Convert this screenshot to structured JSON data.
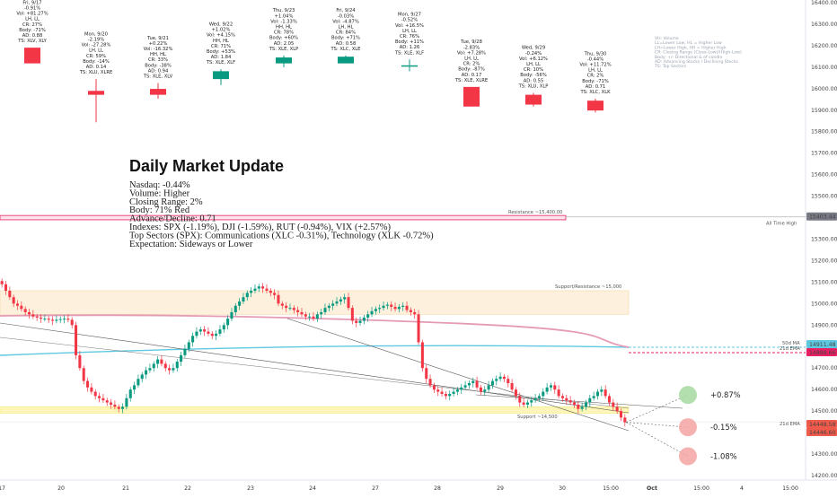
{
  "chart_data": {
    "type": "candlestick",
    "title": "Daily Market Update",
    "summary": [
      "Nasdaq: -0.44%",
      "Volume: Higher",
      "Closing Range: 2%",
      "Body: 71% Red",
      "Advance/Decline:  0.71",
      "Indexes: SPX (-1.19%), DJI (-1.59%), RUT (-0.94%), VIX (+2.57%)",
      "Top Sectors (SPX): Communications (XLC -0.31%), Technology (XLK -0.72%)",
      "Expectation: Sideways or Lower"
    ],
    "legend": [
      "VH: Volume",
      "LL=Lower Low, HL = Higher Low",
      "LH=Lower High, HH = Higher High",
      "CR: Closing Range (Close-Low)/(High-Low)",
      "Body: +/- Directional & of candle",
      "AD: Advancing Stocks / Declining Stocks",
      "TS: Top Sectors"
    ],
    "y_axis": {
      "ticks": [
        14200,
        14300,
        14400,
        14500,
        14600,
        14700,
        14800,
        14900,
        15000,
        15100,
        15200,
        15300,
        15400,
        15500,
        15600,
        15700,
        15800,
        15900,
        16000,
        16100,
        16200,
        16300,
        16400
      ],
      "badges": [
        {
          "text": "15403.44",
          "color": "#787b86"
        },
        {
          "text": "14911.48",
          "color": "#5ec8e0"
        },
        {
          "text": "14888.66",
          "color": "#e91e63"
        },
        {
          "text": "14448.58",
          "color": "#f05a4a"
        },
        {
          "text": "14446.60",
          "color": "#f05a4a"
        }
      ]
    },
    "x_axis": {
      "ticks": [
        "17",
        "20",
        "21",
        "22",
        "23",
        "24",
        "27",
        "28",
        "29",
        "30",
        "15:00",
        "Oct",
        "15:00",
        "4",
        "15:00"
      ]
    },
    "daily_candles": [
      {
        "date": "Fri, 9/17",
        "stats": [
          "Fri, 9/17",
          "-0.91%",
          "Vol: +81.27%",
          "LH, LL",
          "CR: 27%",
          "Body: -71%",
          "AD: 0.88",
          "TS: XLV, XLY"
        ],
        "color": "red",
        "o": 15370,
        "h": 15370,
        "l": 15330,
        "c": 15330
      },
      {
        "date": "Mon, 9/20",
        "stats": [
          "Mon, 9/20",
          "-2.19%",
          "Vol: -27.28%",
          "LH, LL",
          "CR: 59%",
          "Body: -14%",
          "AD: 0.14",
          "TS: XLU, XLRE"
        ],
        "color": "red",
        "o": 15260,
        "h": 15290,
        "l": 15180,
        "c": 15250
      },
      {
        "date": "Tue, 9/21",
        "stats": [
          "Tue, 9/21",
          "+0.22%",
          "Vol: -16.32%",
          "HH, HL",
          "CR: 33%",
          "Body: -38%",
          "AD: 0.94",
          "TS: XLE, XLV"
        ],
        "color": "red",
        "o": 15265,
        "h": 15280,
        "l": 15240,
        "c": 15250
      },
      {
        "date": "Wed, 9/22",
        "stats": [
          "Wed, 9/22",
          "+1.02%",
          "Vol: +4.15%",
          "HH, HL",
          "CR: 71%",
          "Body: +53%",
          "AD: 1.84",
          "TS: XLE, XLF"
        ],
        "color": "green",
        "o": 15290,
        "h": 15315,
        "l": 15275,
        "c": 15310
      },
      {
        "date": "Thu, 9/23",
        "stats": [
          "Thu, 9/23",
          "+1.04%",
          "Vol: -1.33%",
          "HH, HL",
          "CR: 78%",
          "Body: +60%",
          "AD: 2.05",
          "TS: XLE, XLP"
        ],
        "color": "green",
        "o": 15330,
        "h": 15350,
        "l": 15320,
        "c": 15345
      },
      {
        "date": "Fri, 9/24",
        "stats": [
          "Fri, 9/24",
          "-0.03%",
          "Vol: -4.87%",
          "LH, HL",
          "CR: 84%",
          "Body: +71%",
          "AD: 0.58",
          "TS: XLC, XLE"
        ],
        "color": "green",
        "o": 15330,
        "h": 15350,
        "l": 15330,
        "c": 15347
      },
      {
        "date": "Mon, 9/27",
        "stats": [
          "Mon, 9/27",
          "-0.52%",
          "Vol: +16.5%",
          "LH, LL",
          "CR: 76%",
          "Body: +11%",
          "AD: 1.26",
          "TS: XLE, XLF"
        ],
        "color": "green",
        "o": 15322,
        "h": 15340,
        "l": 15310,
        "c": 15325
      },
      {
        "date": "Tue, 9/28",
        "stats": [
          "Tue, 9/28",
          "-2.83%",
          "Vol: +7.28%",
          "LH, LL",
          "CR: 2%",
          "Body: -87%",
          "AD: 0.17",
          "TS: XLE, XLRE"
        ],
        "color": "red",
        "o": 15270,
        "h": 15270,
        "l": 15220,
        "c": 15220
      },
      {
        "date": "Wed, 9/29",
        "stats": [
          "Wed, 9/29",
          "-0.24%",
          "Vol: +6.12%",
          "LH, LL",
          "CR: 10%",
          "Body: -56%",
          "AD: 0.55",
          "TS: XLU, XLP"
        ],
        "color": "red",
        "o": 15250,
        "h": 15255,
        "l": 15220,
        "c": 15225
      },
      {
        "date": "Thu, 9/30",
        "stats": [
          "Thu, 9/30",
          "-0.44%",
          "Vol: +11.72%",
          "LH, LL",
          "CR: 2%",
          "Body: -71%",
          "AD: 0.71",
          "TS: XLC, XLK"
        ],
        "color": "red",
        "o": 15235,
        "h": 15240,
        "l": 15205,
        "c": 15210
      }
    ],
    "hourly_series": {
      "name": "Nasdaq hourly",
      "closes": [
        15090,
        15060,
        15030,
        15000,
        14990,
        14975,
        14960,
        14950,
        14940,
        14935,
        14930,
        14930,
        14925,
        14920,
        14925,
        14928,
        14930,
        14925,
        14900,
        14760,
        14700,
        14640,
        14610,
        14590,
        14570,
        14560,
        14550,
        14540,
        14530,
        14520,
        14510,
        14520,
        14560,
        14600,
        14620,
        14650,
        14670,
        14690,
        14700,
        14720,
        14740,
        14720,
        14700,
        14690,
        14700,
        14730,
        14760,
        14790,
        14820,
        14850,
        14870,
        14880,
        14870,
        14860,
        14850,
        14860,
        14880,
        14900,
        14930,
        14960,
        14990,
        15010,
        15030,
        15050,
        15060,
        15070,
        15080,
        15070,
        15060,
        15050,
        15040,
        15000,
        14990,
        14980,
        14980,
        14970,
        14960,
        14950,
        14940,
        14940,
        14930,
        14950,
        14960,
        14980,
        14990,
        15000,
        15010,
        15020,
        15030,
        14980,
        14920,
        14910,
        14920,
        14935,
        14950,
        14965,
        14975,
        14980,
        14990,
        14995,
        14985,
        14975,
        14985,
        14990,
        14970,
        14960,
        14950,
        14820,
        14700,
        14650,
        14620,
        14600,
        14590,
        14580,
        14570,
        14580,
        14590,
        14600,
        14610,
        14620,
        14630,
        14640,
        14610,
        14590,
        14600,
        14620,
        14640,
        14650,
        14660,
        14650,
        14630,
        14600,
        14570,
        14540,
        14530,
        14540,
        14550,
        14560,
        14570,
        14590,
        14610,
        14620,
        14600,
        14570,
        14560,
        14550,
        14540,
        14530,
        14510,
        14520,
        14540,
        14560,
        14570,
        14590,
        14600,
        14570,
        14540,
        14520,
        14500,
        14470,
        14448
      ]
    },
    "levels": [
      {
        "label": "Resistance ~15,400.00",
        "value": 15403.44,
        "color": "#e91e63"
      },
      {
        "label": "All Time High",
        "value": 15403.44,
        "color": "#9e9e9e"
      },
      {
        "label": "Support/Resistance ~15,000",
        "value": 15000,
        "color": "#f5cf9a"
      },
      {
        "label": "Support ~14,500",
        "value": 14500,
        "color": "#f5e96b"
      },
      {
        "label": "50d MA",
        "value": 14911.48,
        "color": "#5ec8e0"
      },
      {
        "label": "21d EMA",
        "value": 14888.66,
        "color": "#e91e63"
      }
    ],
    "scenarios": [
      {
        "label": "+0.87%",
        "value": 14575,
        "color": "#a6d8a0"
      },
      {
        "label": "-0.15%",
        "value": 14425,
        "color": "#f4a3a3"
      },
      {
        "label": "-1.08%",
        "value": 14290,
        "color": "#f4a3a3"
      }
    ],
    "grid": false,
    "colors": {
      "up": "#089981",
      "down": "#f23645"
    }
  }
}
